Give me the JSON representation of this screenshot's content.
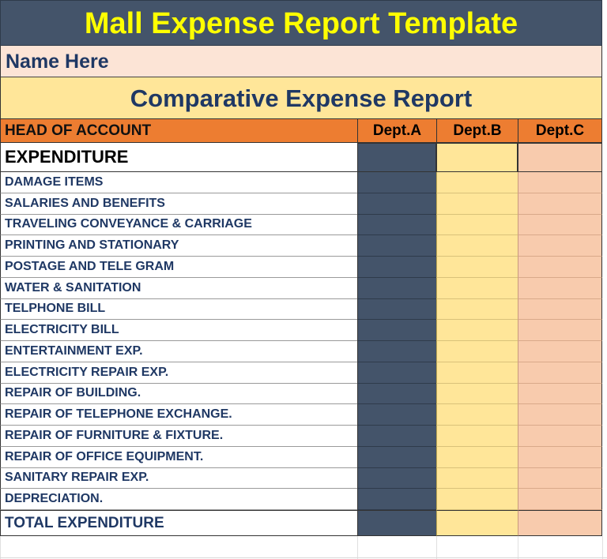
{
  "title": "Mall Expense Report Template",
  "name_line": "Name Here",
  "subtitle": "Comparative Expense Report",
  "header": {
    "account": "HEAD OF ACCOUNT",
    "dept_a": "Dept.A",
    "dept_b": "Dept.B",
    "dept_c": "Dept.C"
  },
  "section_title": "EXPENDITURE",
  "items": [
    "DAMAGE ITEMS",
    "SALARIES AND BENEFITS",
    "TRAVELING CONVEYANCE & CARRIAGE",
    "PRINTING AND STATIONARY",
    "POSTAGE AND TELE GRAM",
    "WATER & SANITATION",
    "TELPHONE BILL",
    "ELECTRICITY BILL",
    "ENTERTAINMENT EXP.",
    "ELECTRICITY REPAIR EXP.",
    "REPAIR OF BUILDING.",
    "REPAIR OF TELEPHONE EXCHANGE.",
    "REPAIR OF FURNITURE & FIXTURE.",
    "REPAIR OF OFFICE EQUIPMENT.",
    "SANITARY REPAIR EXP.",
    "DEPRECIATION."
  ],
  "total_label": "TOTAL EXPENDITURE",
  "colors": {
    "title_bg": "#44546a",
    "title_text": "#ffff00",
    "header_bg": "#ed7d31",
    "dept_a_fill": "#44546a",
    "dept_b_fill": "#ffe699",
    "dept_c_fill": "#f8cbad"
  }
}
